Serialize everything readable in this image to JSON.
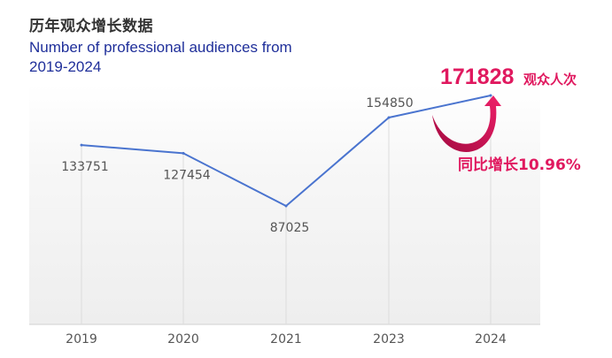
{
  "title_cn": "历年观众增长数据",
  "title_en": "Number of professional audiences from 2019-2024",
  "highlight": {
    "value": "171828",
    "unit": "观众人次",
    "growth": "同比增长10.96%"
  },
  "colors": {
    "line": "#4a74cf",
    "accent": "#e0195f",
    "title_en": "#1f2f9a",
    "label": "#555555"
  },
  "chart_data": {
    "type": "line",
    "categories": [
      "2019",
      "2020",
      "2021",
      "2023",
      "2024"
    ],
    "series": [
      {
        "values": [
          133751,
          127454,
          87025,
          154850,
          171828
        ]
      }
    ],
    "data_labels": [
      "133751",
      "127454",
      "87025",
      "154850",
      ""
    ],
    "ylim": [
      0,
      180000
    ],
    "grid": false,
    "legend": "none"
  }
}
